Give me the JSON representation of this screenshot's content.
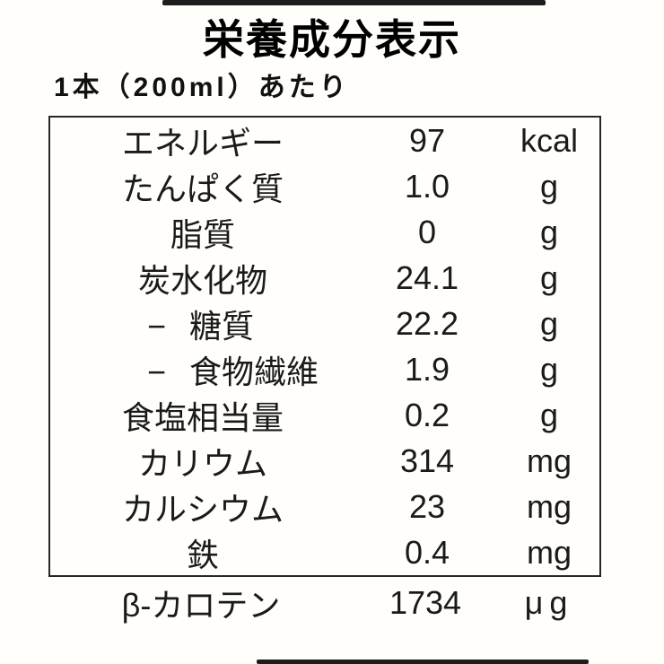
{
  "page": {
    "title": "栄養成分表示",
    "serving": "1本（200ml）あたり"
  },
  "table": {
    "indent_prefix": "−",
    "rows": [
      {
        "label": "エネルギー",
        "value": "97",
        "unit": "kcal",
        "indent": false
      },
      {
        "label": "たんぱく質",
        "value": "1.0",
        "unit": "g",
        "indent": false
      },
      {
        "label": "脂質",
        "value": "0",
        "unit": "g",
        "indent": false
      },
      {
        "label": "炭水化物",
        "value": "24.1",
        "unit": "g",
        "indent": false
      },
      {
        "label": "糖質",
        "value": "22.2",
        "unit": "g",
        "indent": true
      },
      {
        "label": "食物繊維",
        "value": "1.9",
        "unit": "g",
        "indent": true
      },
      {
        "label": "食塩相当量",
        "value": "0.2",
        "unit": "g",
        "indent": false
      },
      {
        "label": "カリウム",
        "value": "314",
        "unit": "mg",
        "indent": false
      },
      {
        "label": "カルシウム",
        "value": "23",
        "unit": "mg",
        "indent": false
      },
      {
        "label": "鉄",
        "value": "0.4",
        "unit": "mg",
        "indent": false
      }
    ]
  },
  "footer_row": {
    "label": "β-カロテン",
    "value": "1734",
    "unit": "μg"
  },
  "colors": {
    "text": "#1a1a1a",
    "border": "#262626",
    "bar": "#1d1d1d",
    "background": "#fffefa"
  }
}
